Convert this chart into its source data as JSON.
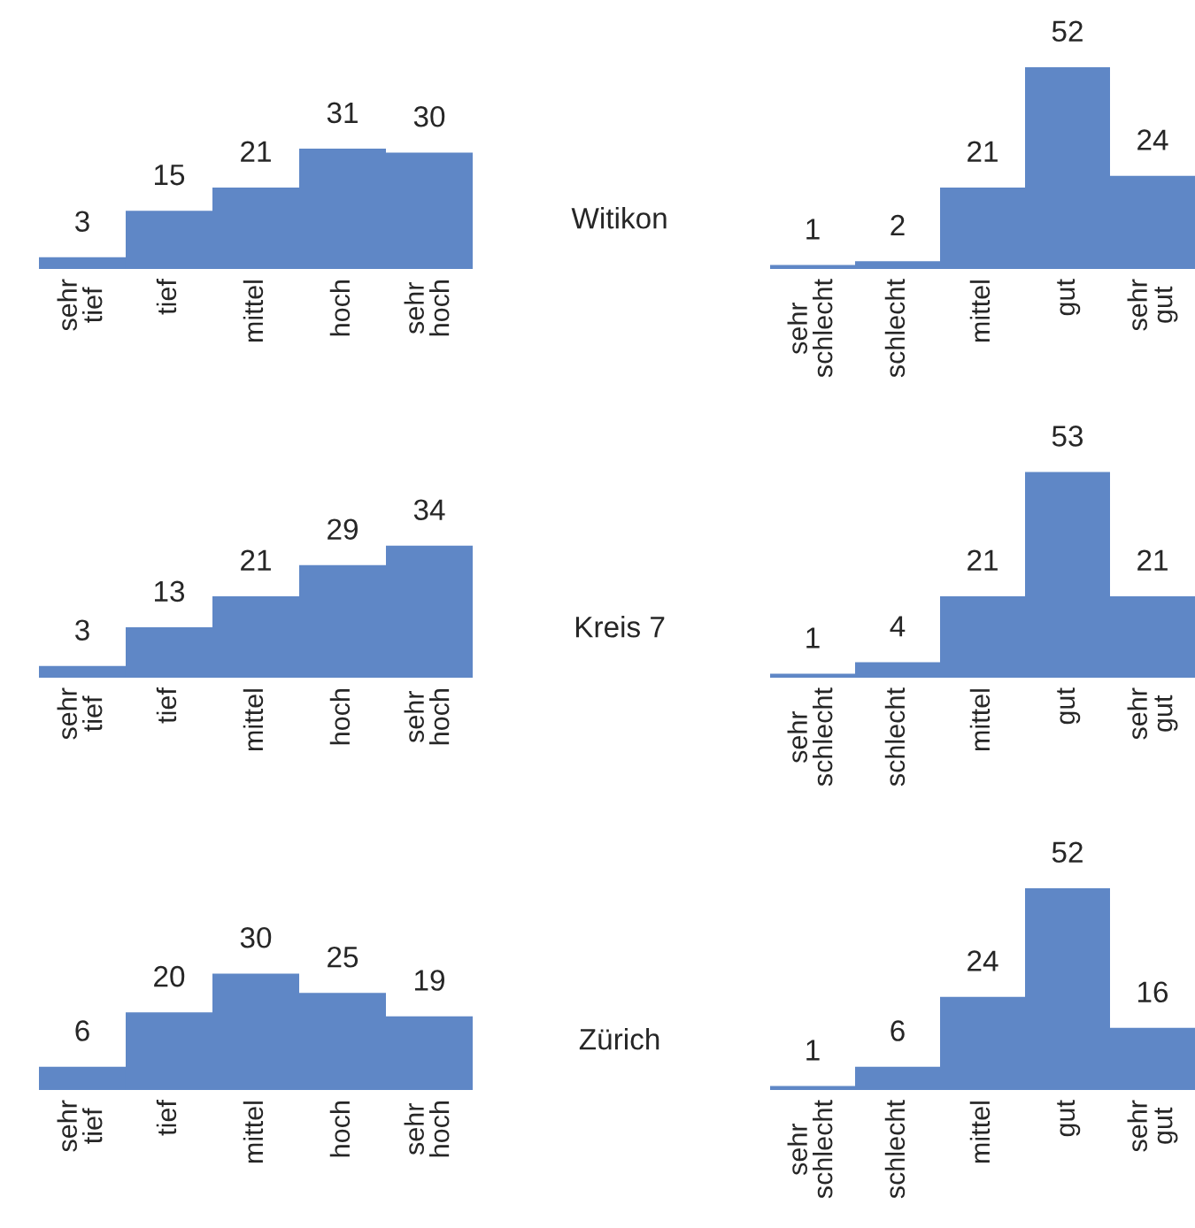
{
  "chart_data": [
    {
      "type": "bar",
      "categories": [
        "sehr\ntief",
        "tief",
        "mittel",
        "hoch",
        "sehr\nhoch"
      ],
      "values": [
        3,
        15,
        21,
        31,
        30
      ],
      "color": "#5f87c6",
      "data_labels": true
    },
    {
      "type": "bar",
      "title": "Witikon",
      "categories": [
        "sehr\nschlecht",
        "schlecht",
        "mittel",
        "gut",
        "sehr\ngut"
      ],
      "values": [
        1,
        2,
        21,
        52,
        24
      ],
      "color": "#5f87c6",
      "data_labels": true
    },
    {
      "type": "bar",
      "categories": [
        "sehr\ntief",
        "tief",
        "mittel",
        "hoch",
        "sehr\nhoch"
      ],
      "values": [
        3,
        13,
        21,
        29,
        34
      ],
      "color": "#5f87c6",
      "data_labels": true
    },
    {
      "type": "bar",
      "title": "Kreis 7",
      "categories": [
        "sehr\nschlecht",
        "schlecht",
        "mittel",
        "gut",
        "sehr\ngut"
      ],
      "values": [
        1,
        4,
        21,
        53,
        21
      ],
      "color": "#5f87c6",
      "data_labels": true
    },
    {
      "type": "bar",
      "categories": [
        "sehr\ntief",
        "tief",
        "mittel",
        "hoch",
        "sehr\nhoch"
      ],
      "values": [
        6,
        20,
        30,
        25,
        19
      ],
      "color": "#5f87c6",
      "data_labels": true
    },
    {
      "type": "bar",
      "title": "Zürich",
      "categories": [
        "sehr\nschlecht",
        "schlecht",
        "mittel",
        "gut",
        "sehr\ngut"
      ],
      "values": [
        1,
        6,
        24,
        52,
        16
      ],
      "color": "#5f87c6",
      "data_labels": true
    }
  ]
}
